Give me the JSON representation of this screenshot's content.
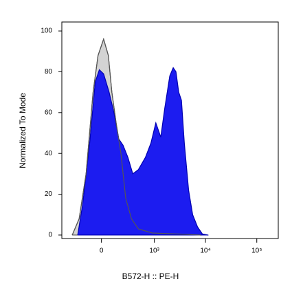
{
  "chart_data": {
    "type": "area",
    "x_label": "B572-H :: PE-H",
    "y_label": "Normalized To Mode",
    "xscale": "asinh",
    "asinh_cofactor": 188,
    "xlim": [
      -540,
      262144
    ],
    "xticks": [
      0,
      {
        "value": 1000,
        "label": "10³"
      },
      {
        "value": 10000,
        "label": "10⁴"
      },
      {
        "value": 100000,
        "label": "10⁵"
      }
    ],
    "ylim": [
      -1.7,
      104.4
    ],
    "yticks": [
      0,
      20,
      40,
      60,
      80,
      100
    ],
    "series": [
      {
        "color": "#d3d3d3",
        "line_color": "#555555",
        "x": [
          -324,
          -221,
          -140,
          -72,
          -29,
          18,
          59,
          91,
          133,
          186,
          248,
          337,
          474,
          910,
          3200,
          8200
        ],
        "values": [
          0,
          8,
          30,
          70,
          88,
          96,
          88,
          70,
          55,
          40,
          18,
          8,
          3,
          1,
          0.5,
          0
        ]
      },
      {
        "color": "#1c1cf0",
        "line_color": "#0000b0",
        "x": [
          -240,
          -178,
          -104,
          -53,
          -18,
          18,
          66,
          111,
          162,
          212,
          280,
          361,
          474,
          662,
          854,
          1070,
          1340,
          1600,
          2010,
          2350,
          2660,
          3010,
          3400,
          3870,
          4690,
          5620,
          7000,
          8720,
          11200
        ],
        "values": [
          0,
          15,
          45,
          75,
          81,
          79,
          70,
          60,
          47,
          44,
          38,
          30,
          32,
          38,
          45,
          55,
          48,
          62,
          78,
          82,
          80,
          70,
          66,
          45,
          22,
          10,
          4,
          0.5,
          0
        ]
      }
    ]
  }
}
